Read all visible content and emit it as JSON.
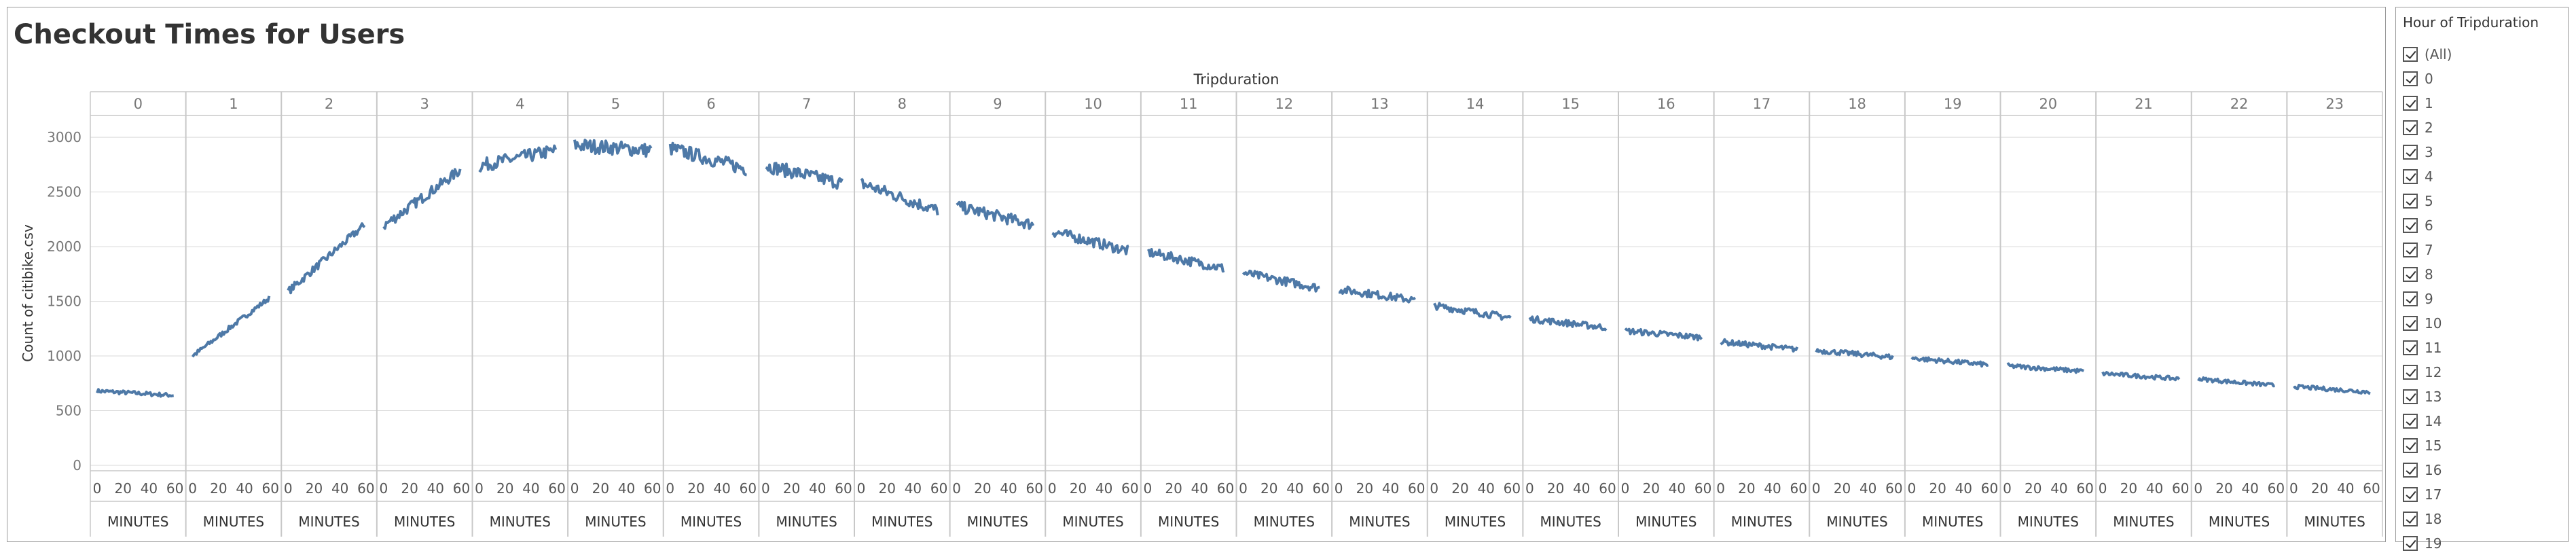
{
  "title": "Checkout Times for Users",
  "filter": {
    "title": "Hour of Tripduration",
    "items": [
      "(All)",
      "0",
      "1",
      "2",
      "3",
      "4",
      "5",
      "6",
      "7",
      "8",
      "9",
      "10",
      "11",
      "12",
      "13",
      "14",
      "15",
      "16",
      "17",
      "18",
      "19"
    ]
  },
  "colors": {
    "line": "#4e79a7",
    "grid": "#d9d9d9",
    "axis_text": "#777777"
  },
  "chart_data": {
    "type": "line",
    "title": "Checkout Times for Users",
    "column_header": "Tripduration",
    "ylabel": "Count of citibike.csv",
    "ylim": [
      -50,
      3200
    ],
    "yticks": [
      0,
      500,
      1000,
      1500,
      2000,
      2500,
      3000
    ],
    "panels": [
      "0",
      "1",
      "2",
      "3",
      "4",
      "5",
      "6",
      "7",
      "8",
      "9",
      "10",
      "11",
      "12",
      "13",
      "14",
      "15",
      "16",
      "17",
      "18",
      "19",
      "20",
      "21",
      "22",
      "23"
    ],
    "panel_xlabel": "MINUTES",
    "xticks": [
      0,
      20,
      40,
      60
    ],
    "xlim": [
      0,
      60
    ],
    "series_description": "Count per minute within each hour; approximate start/end values per hour panel",
    "segments": [
      {
        "hour": 0,
        "start": 680,
        "end": 640
      },
      {
        "hour": 1,
        "start": 1000,
        "end": 1530
      },
      {
        "hour": 2,
        "start": 1590,
        "end": 2200
      },
      {
        "hour": 3,
        "start": 2190,
        "end": 2700
      },
      {
        "hour": 4,
        "start": 2740,
        "end": 2880
      },
      {
        "hour": 5,
        "start": 2930,
        "end": 2880
      },
      {
        "hour": 6,
        "start": 2900,
        "end": 2710
      },
      {
        "hour": 7,
        "start": 2740,
        "end": 2580
      },
      {
        "hour": 8,
        "start": 2580,
        "end": 2330
      },
      {
        "hour": 9,
        "start": 2370,
        "end": 2200
      },
      {
        "hour": 10,
        "start": 2140,
        "end": 1960
      },
      {
        "hour": 11,
        "start": 1950,
        "end": 1800
      },
      {
        "hour": 12,
        "start": 1760,
        "end": 1620
      },
      {
        "hour": 13,
        "start": 1610,
        "end": 1510
      },
      {
        "hour": 14,
        "start": 1460,
        "end": 1350
      },
      {
        "hour": 15,
        "start": 1340,
        "end": 1260
      },
      {
        "hour": 16,
        "start": 1230,
        "end": 1170
      },
      {
        "hour": 17,
        "start": 1130,
        "end": 1060
      },
      {
        "hour": 18,
        "start": 1050,
        "end": 990
      },
      {
        "hour": 19,
        "start": 980,
        "end": 920
      },
      {
        "hour": 20,
        "start": 910,
        "end": 860
      },
      {
        "hour": 21,
        "start": 840,
        "end": 790
      },
      {
        "hour": 22,
        "start": 790,
        "end": 730
      },
      {
        "hour": 23,
        "start": 720,
        "end": 670
      }
    ]
  }
}
